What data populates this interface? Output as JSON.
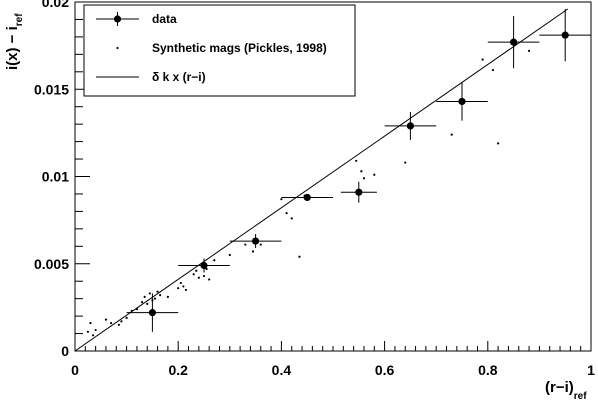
{
  "chart_data": {
    "type": "scatter",
    "xlabel": {
      "main": "(r−i)",
      "sub": "ref"
    },
    "ylabel": {
      "main": "i(x) − i",
      "sub": "ref"
    },
    "xlim": [
      0,
      1
    ],
    "ylim": [
      0,
      0.02
    ],
    "x_ticks": [
      0,
      0.2,
      0.4,
      0.6,
      0.8,
      1
    ],
    "x_tick_labels": [
      "0",
      "0.2",
      "0.4",
      "0.6",
      "0.8",
      "1"
    ],
    "y_ticks": [
      0,
      0.005,
      0.01,
      0.015,
      0.02
    ],
    "y_tick_labels": [
      "0",
      "0.005",
      "0.01",
      "0.015",
      "0.02"
    ],
    "grid": false,
    "legend_position": "top-left",
    "legend": [
      {
        "label": "data",
        "marker": "filled-circle"
      },
      {
        "label": "Synthetic mags (Pickles, 1998)",
        "marker": "small-dot"
      },
      {
        "label": "δ k x (r−i)",
        "marker": "line"
      }
    ],
    "series": [
      {
        "name": "data",
        "kind": "points-with-errors",
        "x": [
          0.15,
          0.25,
          0.35,
          0.45,
          0.55,
          0.65,
          0.75,
          0.85,
          0.95
        ],
        "y": [
          0.0022,
          0.0049,
          0.0063,
          0.0088,
          0.0091,
          0.0129,
          0.0143,
          0.0177,
          0.0181
        ],
        "xerr": [
          0.05,
          0.05,
          0.05,
          0.05,
          0.035,
          0.05,
          0.05,
          0.05,
          0.05
        ],
        "yerr": [
          0.0011,
          0.0004,
          0.0004,
          0.0002,
          0.0006,
          0.0008,
          0.0011,
          0.0015,
          0.0015
        ]
      },
      {
        "name": "Synthetic mags (Pickles, 1998)",
        "kind": "dots",
        "points": [
          [
            0.025,
            0.0011
          ],
          [
            0.03,
            0.0016
          ],
          [
            0.035,
            0.0009
          ],
          [
            0.04,
            0.0012
          ],
          [
            0.06,
            0.0018
          ],
          [
            0.07,
            0.0016
          ],
          [
            0.085,
            0.0015
          ],
          [
            0.09,
            0.0017
          ],
          [
            0.1,
            0.0019
          ],
          [
            0.11,
            0.0023
          ],
          [
            0.12,
            0.0024
          ],
          [
            0.13,
            0.0028
          ],
          [
            0.135,
            0.0031
          ],
          [
            0.14,
            0.0027
          ],
          [
            0.145,
            0.0033
          ],
          [
            0.15,
            0.0029
          ],
          [
            0.155,
            0.003
          ],
          [
            0.16,
            0.0034
          ],
          [
            0.165,
            0.0032
          ],
          [
            0.18,
            0.0031
          ],
          [
            0.2,
            0.0036
          ],
          [
            0.205,
            0.0039
          ],
          [
            0.21,
            0.0037
          ],
          [
            0.215,
            0.0035
          ],
          [
            0.23,
            0.0044
          ],
          [
            0.235,
            0.0046
          ],
          [
            0.24,
            0.0042
          ],
          [
            0.25,
            0.0043
          ],
          [
            0.255,
            0.0047
          ],
          [
            0.26,
            0.0041
          ],
          [
            0.27,
            0.0052
          ],
          [
            0.3,
            0.0055
          ],
          [
            0.33,
            0.0061
          ],
          [
            0.345,
            0.0057
          ],
          [
            0.36,
            0.0061
          ],
          [
            0.4,
            0.0087
          ],
          [
            0.41,
            0.0079
          ],
          [
            0.42,
            0.0076
          ],
          [
            0.435,
            0.0054
          ],
          [
            0.445,
            0.0089
          ],
          [
            0.545,
            0.0109
          ],
          [
            0.555,
            0.0103
          ],
          [
            0.56,
            0.0099
          ],
          [
            0.58,
            0.0101
          ],
          [
            0.64,
            0.0108
          ],
          [
            0.73,
            0.0124
          ],
          [
            0.79,
            0.0167
          ],
          [
            0.81,
            0.0161
          ],
          [
            0.82,
            0.0119
          ],
          [
            0.88,
            0.0172
          ]
        ]
      },
      {
        "name": "δ k x (r−i)",
        "kind": "line",
        "x": [
          0,
          0.955
        ],
        "y": [
          0,
          0.0196
        ]
      }
    ]
  }
}
